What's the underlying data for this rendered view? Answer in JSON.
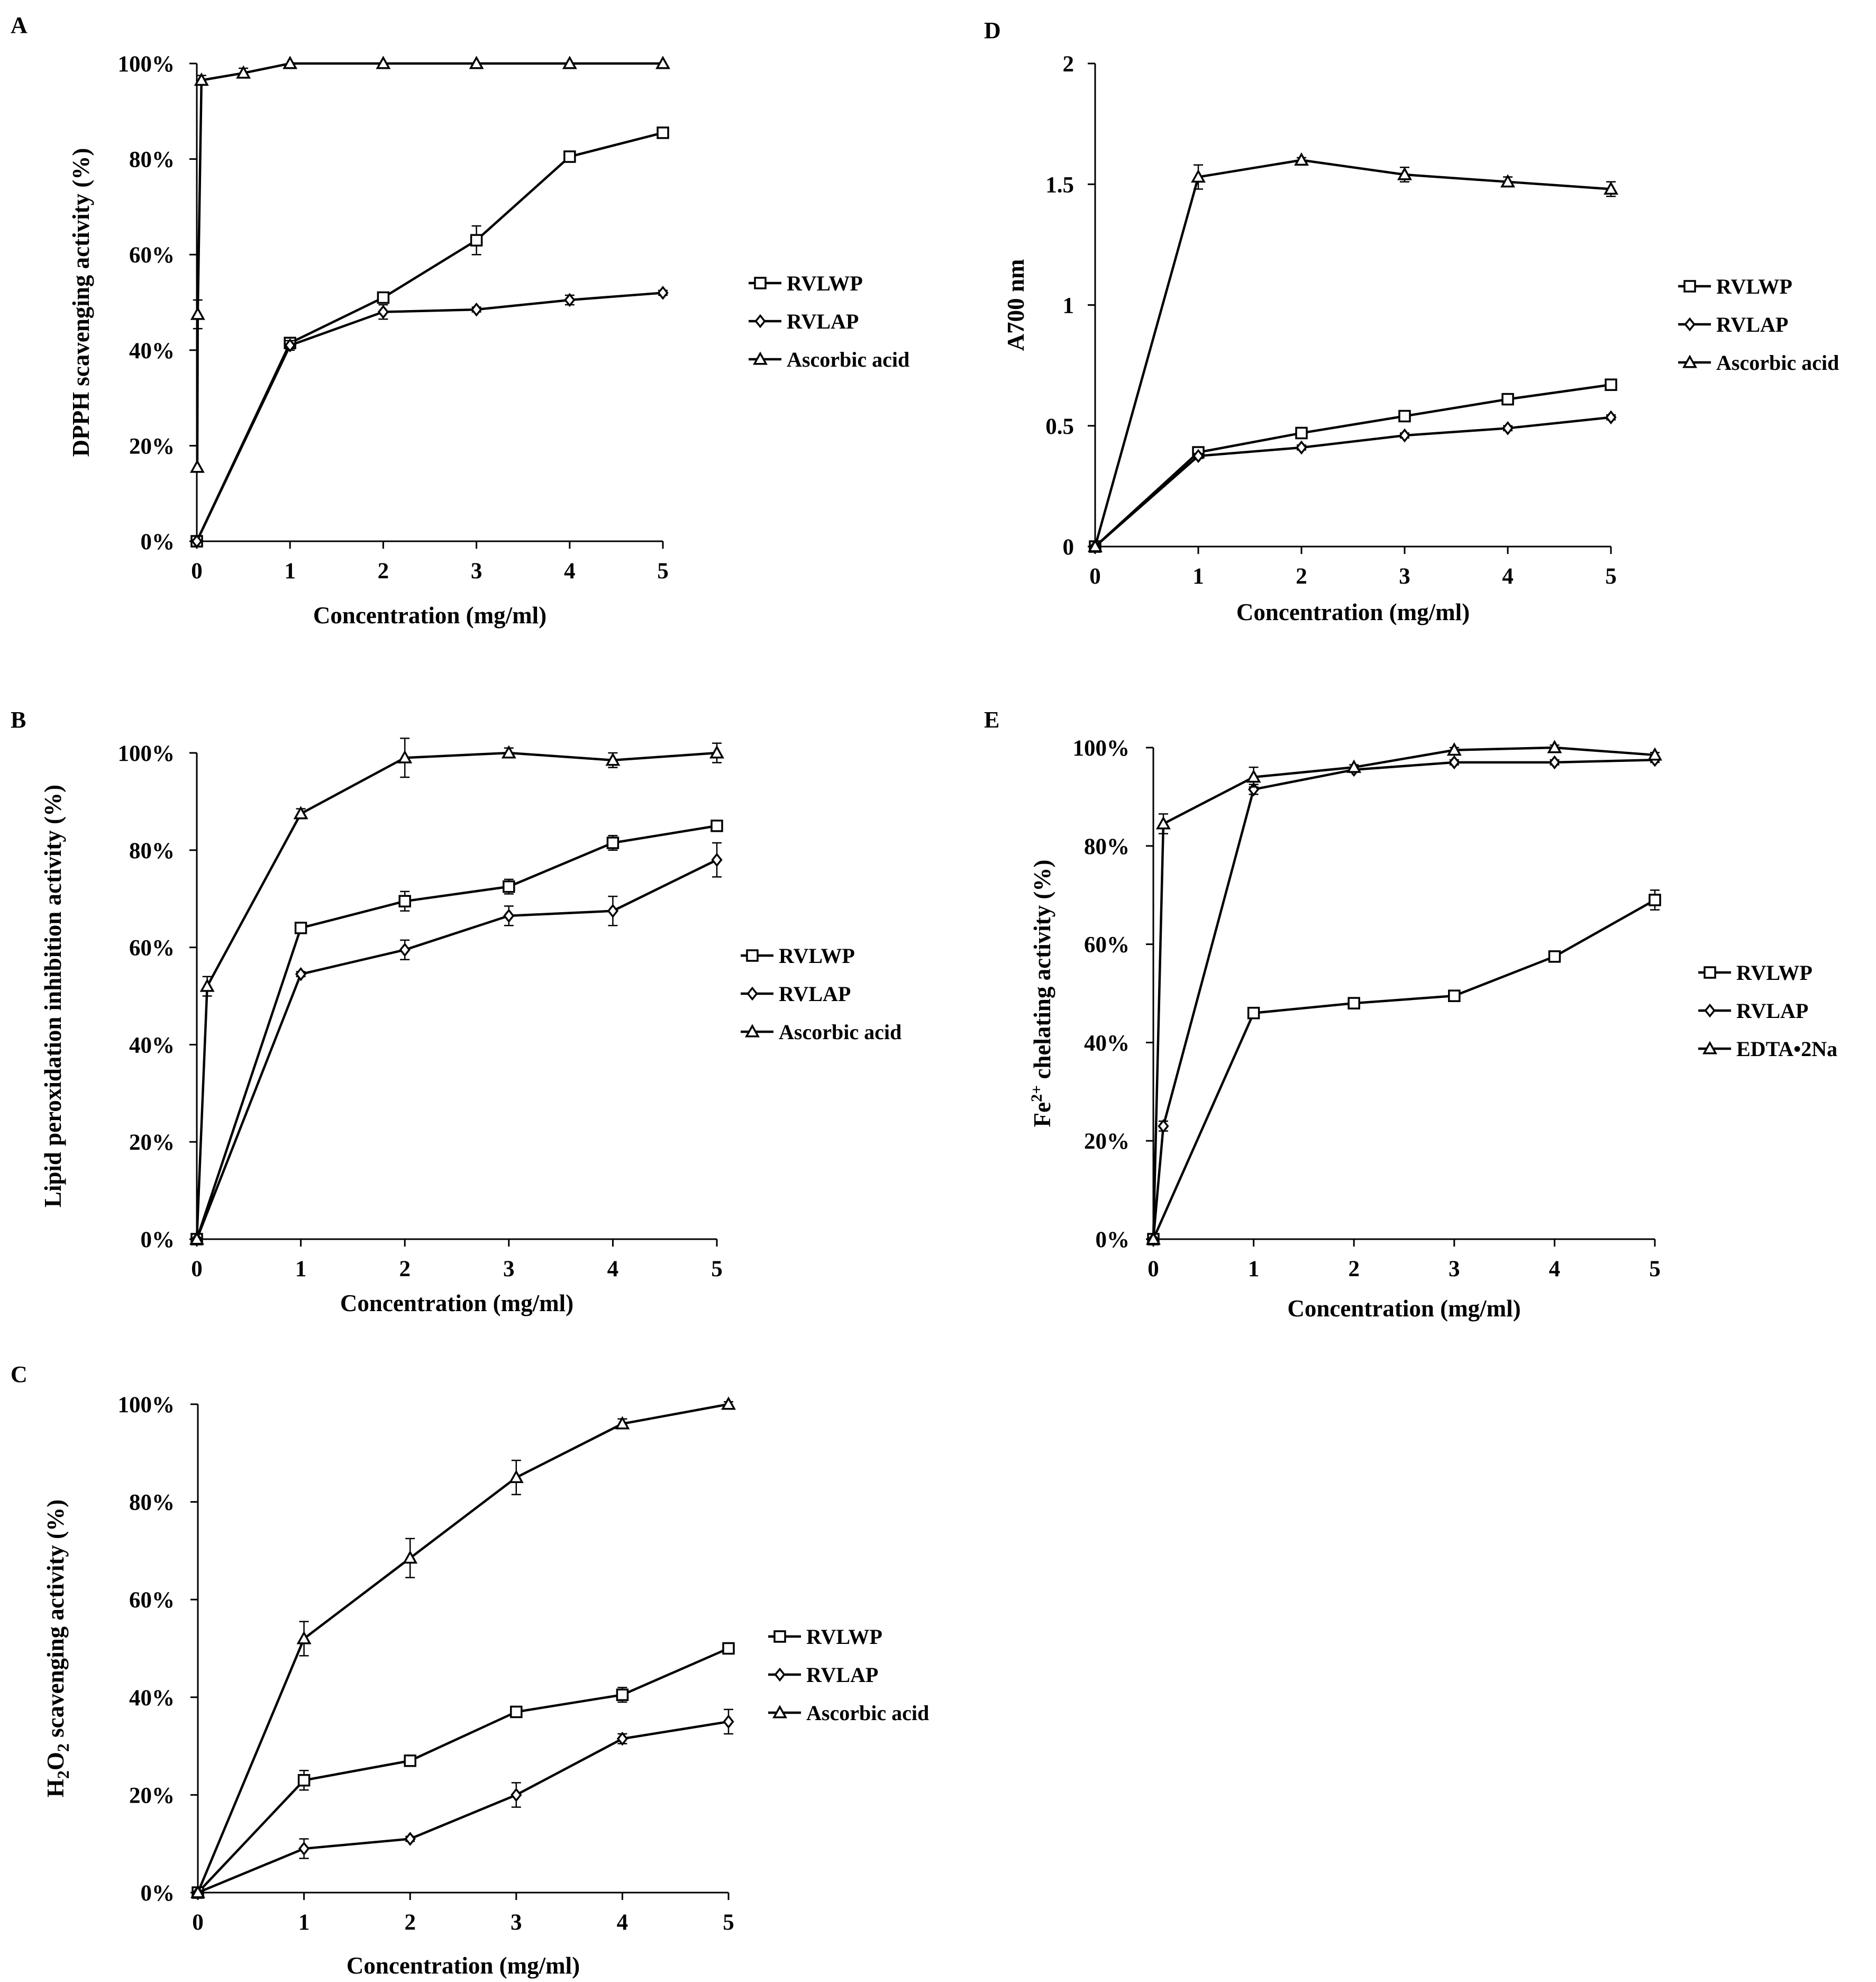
{
  "chart_data": [
    {
      "type": "line",
      "panel": "A",
      "xlabel": "Concentration (mg/ml)",
      "ylabel": "DPPH scavenging activity (%)",
      "xlim": [
        0,
        5
      ],
      "ylim": [
        0,
        1
      ],
      "xticks": [
        "0",
        "1",
        "2",
        "3",
        "4",
        "5"
      ],
      "yticks": [
        "0%",
        "20%",
        "40%",
        "60%",
        "80%",
        "100%"
      ],
      "legend": {
        "position": "right"
      },
      "series": [
        {
          "name": "RVLWP",
          "marker": "square",
          "x": [
            0,
            1,
            2,
            3,
            4,
            5
          ],
          "y": [
            0,
            0.415,
            0.51,
            0.63,
            0.805,
            0.855
          ],
          "err": [
            0,
            0.01,
            0.01,
            0.03,
            0.01,
            0.01
          ]
        },
        {
          "name": "RVLAP",
          "marker": "diamond",
          "x": [
            0,
            1,
            2,
            3,
            4,
            5
          ],
          "y": [
            0,
            0.41,
            0.48,
            0.485,
            0.505,
            0.52
          ],
          "err": [
            0,
            0.01,
            0.015,
            0.005,
            0.01,
            0.005
          ]
        },
        {
          "name": "Ascorbic acid",
          "marker": "triangle",
          "x": [
            0.005,
            0.01,
            0.05,
            0.5,
            1,
            2,
            3,
            4,
            5
          ],
          "y": [
            0.155,
            0.475,
            0.965,
            0.98,
            1.0,
            1.0,
            1.0,
            1.0,
            1.0
          ],
          "err": [
            0,
            0.03,
            0.01,
            0.01,
            0,
            0,
            0,
            0,
            0
          ]
        }
      ]
    },
    {
      "type": "line",
      "panel": "B",
      "xlabel": "Concentration (mg/ml)",
      "ylabel": "Lipid peroxidation inhibition activity (%)",
      "xlim": [
        0,
        5
      ],
      "ylim": [
        0,
        1
      ],
      "xticks": [
        "0",
        "1",
        "2",
        "3",
        "4",
        "5"
      ],
      "yticks": [
        "0%",
        "20%",
        "40%",
        "60%",
        "80%",
        "100%"
      ],
      "legend": {
        "position": "right"
      },
      "series": [
        {
          "name": "RVLWP",
          "marker": "square",
          "x": [
            0,
            1,
            2,
            3,
            4,
            5
          ],
          "y": [
            0,
            0.64,
            0.695,
            0.725,
            0.815,
            0.85
          ],
          "err": [
            0,
            0.01,
            0.02,
            0.015,
            0.015,
            0.01
          ]
        },
        {
          "name": "RVLAP",
          "marker": "diamond",
          "x": [
            0,
            1,
            2,
            3,
            4,
            5
          ],
          "y": [
            0,
            0.545,
            0.595,
            0.665,
            0.675,
            0.78
          ],
          "err": [
            0,
            0.005,
            0.02,
            0.02,
            0.03,
            0.035
          ]
        },
        {
          "name": "Ascorbic acid",
          "marker": "triangle",
          "x": [
            0,
            0.1,
            1,
            2,
            3,
            4,
            5
          ],
          "y": [
            0,
            0.52,
            0.875,
            0.99,
            1.0,
            0.985,
            1.0
          ],
          "err": [
            0,
            0.02,
            0.01,
            0.04,
            0.01,
            0.015,
            0.02
          ]
        }
      ]
    },
    {
      "type": "line",
      "panel": "C",
      "xlabel": "Concentration (mg/ml)",
      "ylabel": "H2O2 scavenging activity (%)",
      "ylabel_main": "H",
      "ylabel_sub1": "2",
      "ylabel_mid": "O",
      "ylabel_sub2": "2",
      "ylabel_rest": " scavenging activity (%)",
      "xlim": [
        0,
        5
      ],
      "ylim": [
        0,
        1
      ],
      "xticks": [
        "0",
        "1",
        "2",
        "3",
        "4",
        "5"
      ],
      "yticks": [
        "0%",
        "20%",
        "40%",
        "60%",
        "80%",
        "100%"
      ],
      "legend": {
        "position": "right"
      },
      "series": [
        {
          "name": "RVLWP",
          "marker": "square",
          "x": [
            0,
            1,
            2,
            3,
            4,
            5
          ],
          "y": [
            0,
            0.23,
            0.27,
            0.37,
            0.405,
            0.5
          ],
          "err": [
            0,
            0.02,
            0.01,
            0.01,
            0.015,
            0.005
          ]
        },
        {
          "name": "RVLAP",
          "marker": "diamond",
          "x": [
            0,
            1,
            2,
            3,
            4,
            5
          ],
          "y": [
            0,
            0.09,
            0.11,
            0.2,
            0.315,
            0.35
          ],
          "err": [
            0,
            0.02,
            0.005,
            0.025,
            0.01,
            0.025
          ]
        },
        {
          "name": "Ascorbic acid",
          "marker": "triangle",
          "x": [
            0,
            1,
            2,
            3,
            4,
            5
          ],
          "y": [
            0,
            0.52,
            0.685,
            0.85,
            0.96,
            1.0
          ],
          "err": [
            0,
            0.035,
            0.04,
            0.035,
            0.01,
            0.005
          ]
        }
      ]
    },
    {
      "type": "line",
      "panel": "D",
      "xlabel": "Concentration (mg/ml)",
      "ylabel": "A700 nm",
      "xlim": [
        0,
        5
      ],
      "ylim": [
        0,
        2
      ],
      "xticks": [
        "0",
        "1",
        "2",
        "3",
        "4",
        "5"
      ],
      "yticks": [
        "0",
        "0.5",
        "1",
        "1.5",
        "2"
      ],
      "legend": {
        "position": "right"
      },
      "series": [
        {
          "name": "RVLWP",
          "marker": "square",
          "x": [
            0,
            1,
            2,
            3,
            4,
            5
          ],
          "y": [
            0,
            0.39,
            0.47,
            0.54,
            0.61,
            0.67
          ],
          "err": [
            0,
            0.01,
            0.01,
            0.01,
            0.01,
            0.01
          ]
        },
        {
          "name": "RVLAP",
          "marker": "diamond",
          "x": [
            0,
            1,
            2,
            3,
            4,
            5
          ],
          "y": [
            0,
            0.375,
            0.41,
            0.46,
            0.49,
            0.535
          ],
          "err": [
            0,
            0.01,
            0.01,
            0.01,
            0.01,
            0.01
          ]
        },
        {
          "name": "Ascorbic acid",
          "marker": "triangle",
          "x": [
            0,
            1,
            2,
            3,
            4,
            5
          ],
          "y": [
            0,
            1.53,
            1.6,
            1.54,
            1.51,
            1.48
          ],
          "err": [
            0,
            0.05,
            0.01,
            0.03,
            0.02,
            0.03
          ]
        }
      ]
    },
    {
      "type": "line",
      "panel": "E",
      "xlabel": "Concentration (mg/ml)",
      "ylabel": "Fe2+ chelating activity (%)",
      "ylabel_main": "Fe",
      "ylabel_sup": "2+",
      "ylabel_rest": " chelating activity (%)",
      "xlim": [
        0,
        5
      ],
      "ylim": [
        0,
        1
      ],
      "xticks": [
        "0",
        "1",
        "2",
        "3",
        "4",
        "5"
      ],
      "yticks": [
        "0%",
        "20%",
        "40%",
        "60%",
        "80%",
        "100%"
      ],
      "legend": {
        "position": "right"
      },
      "series": [
        {
          "name": "RVLWP",
          "marker": "square",
          "x": [
            0,
            1,
            2,
            3,
            4,
            5
          ],
          "y": [
            0,
            0.46,
            0.48,
            0.495,
            0.575,
            0.69
          ],
          "err": [
            0,
            0.005,
            0.005,
            0.005,
            0.005,
            0.02
          ]
        },
        {
          "name": "RVLAP",
          "marker": "diamond",
          "x": [
            0,
            0.1,
            1,
            2,
            3,
            4,
            5
          ],
          "y": [
            0,
            0.23,
            0.915,
            0.955,
            0.97,
            0.97,
            0.975
          ],
          "err": [
            0,
            0.01,
            0.01,
            0.005,
            0.005,
            0.005,
            0.005
          ]
        },
        {
          "name": "EDTA•2Na",
          "marker": "triangle",
          "x": [
            0,
            0.1,
            1,
            2,
            3,
            4,
            5
          ],
          "y": [
            0,
            0.845,
            0.94,
            0.96,
            0.995,
            1.0,
            0.985
          ],
          "err": [
            0,
            0.02,
            0.02,
            0.005,
            0.005,
            0.005,
            0.005
          ]
        }
      ]
    }
  ]
}
